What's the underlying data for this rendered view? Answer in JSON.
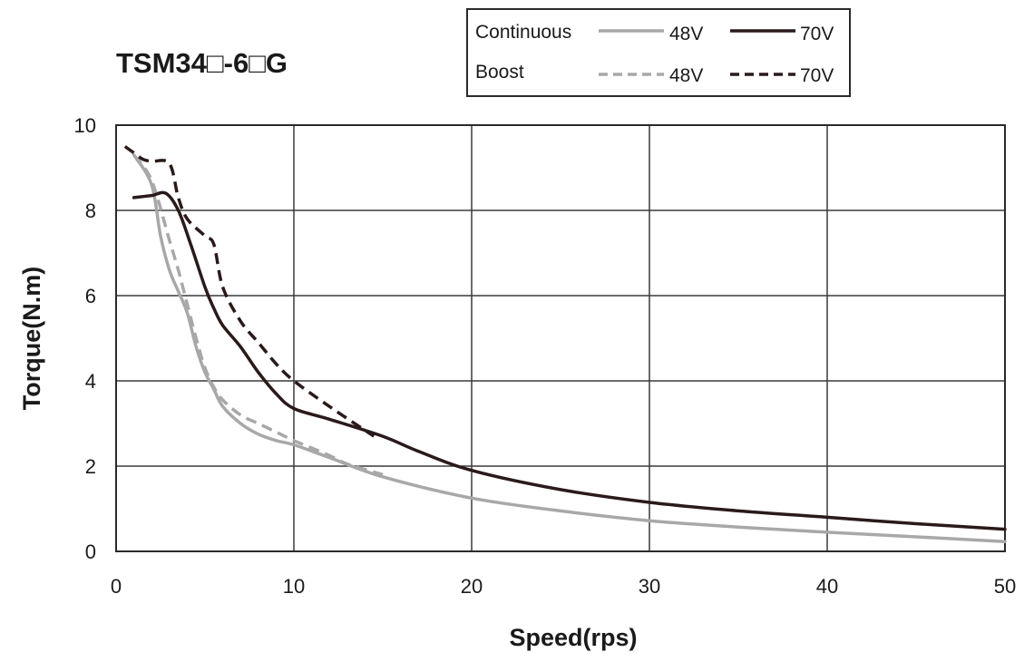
{
  "chart_data": {
    "type": "line",
    "title": "TSM34□-6□G",
    "xlabel": "Speed(rps)",
    "ylabel": "Torque(N.m)",
    "xlim": [
      0,
      50
    ],
    "ylim": [
      0,
      10
    ],
    "xticks": [
      0,
      10,
      20,
      30,
      40,
      50
    ],
    "yticks": [
      0,
      2,
      4,
      6,
      8,
      10
    ],
    "grid": true,
    "legend": {
      "placement": "top-right",
      "group_labels": [
        "Continuous",
        "Boost"
      ],
      "entries": [
        {
          "group": "Continuous",
          "label": "48V"
        },
        {
          "group": "Continuous",
          "label": "70V"
        },
        {
          "group": "Boost",
          "label": "48V"
        },
        {
          "group": "Boost",
          "label": "70V"
        }
      ]
    },
    "colors": {
      "v48": "#a8a8a8",
      "v70": "#2b1a1a",
      "grid": "#3a3a3a"
    },
    "series": [
      {
        "name": "Continuous 48V",
        "group": "Continuous",
        "voltage": "48V",
        "style": "solid",
        "color": "#a8a8a8",
        "x": [
          1,
          2,
          2.5,
          3,
          3.5,
          4,
          4.5,
          5,
          5.5,
          6,
          7,
          8,
          9,
          10,
          12,
          15,
          20,
          25,
          30,
          35,
          40,
          45,
          50
        ],
        "y": [
          9.3,
          8.6,
          7.4,
          6.6,
          6.1,
          5.6,
          4.8,
          4.2,
          3.8,
          3.4,
          3.0,
          2.75,
          2.6,
          2.5,
          2.2,
          1.75,
          1.25,
          0.95,
          0.72,
          0.57,
          0.45,
          0.34,
          0.23
        ]
      },
      {
        "name": "Continuous 70V",
        "group": "Continuous",
        "voltage": "70V",
        "style": "solid",
        "color": "#2b1a1a",
        "x": [
          1,
          2,
          2.8,
          3.5,
          4.2,
          5,
          5.5,
          6,
          7,
          8,
          9,
          10,
          12,
          15,
          17,
          20,
          25,
          30,
          35,
          40,
          45,
          50
        ],
        "y": [
          8.3,
          8.35,
          8.4,
          8.0,
          7.2,
          6.2,
          5.7,
          5.3,
          4.8,
          4.2,
          3.7,
          3.35,
          3.1,
          2.7,
          2.35,
          1.9,
          1.45,
          1.15,
          0.95,
          0.8,
          0.65,
          0.52
        ]
      },
      {
        "name": "Boost 48V",
        "group": "Boost",
        "voltage": "48V",
        "style": "dashed",
        "color": "#a8a8a8",
        "x": [
          1,
          2,
          3,
          3.5,
          4,
          4.5,
          5,
          5.5,
          6,
          7,
          8,
          9,
          10,
          12,
          13,
          15
        ],
        "y": [
          9.3,
          8.7,
          7.3,
          6.6,
          5.8,
          5.0,
          4.3,
          3.85,
          3.55,
          3.2,
          3.0,
          2.8,
          2.6,
          2.25,
          2.05,
          1.8
        ]
      },
      {
        "name": "Boost 70V",
        "group": "Boost",
        "voltage": "70V",
        "style": "dashed",
        "color": "#2b1a1a",
        "x": [
          0.5,
          1,
          1.5,
          2,
          3,
          3.5,
          4,
          5,
          5.5,
          6,
          7,
          8,
          9,
          10,
          12,
          14.5
        ],
        "y": [
          9.5,
          9.35,
          9.2,
          9.15,
          9.1,
          8.3,
          7.8,
          7.4,
          7.2,
          6.2,
          5.4,
          4.9,
          4.4,
          4.0,
          3.4,
          2.7
        ]
      }
    ]
  }
}
